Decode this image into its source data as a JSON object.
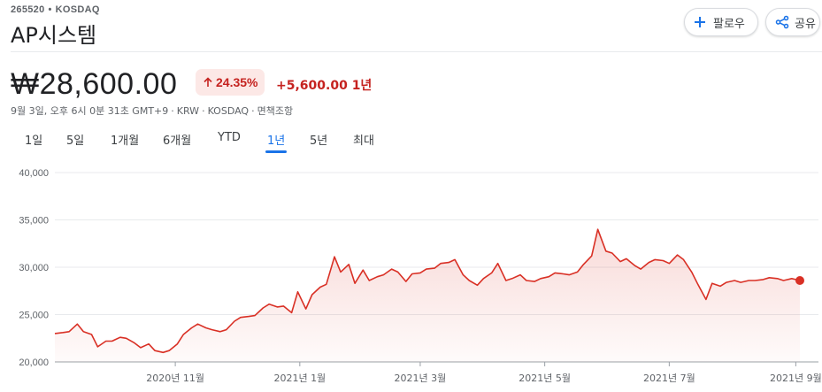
{
  "header": {
    "ticker": "265520",
    "exchange": "KOSDAQ",
    "separator": "•",
    "name": "AP시스템",
    "follow_label": "팔로우",
    "share_label": "공유"
  },
  "quote": {
    "price": "₩28,600.00",
    "change_percent": "24.35%",
    "change_amount": "+5,600.00 1년",
    "meta": [
      "9월 3일, 오후 6시 0분 31초 GMT+9",
      "KRW",
      "KOSDAQ",
      "면책조항"
    ],
    "meta_separator": "·",
    "trend_color": "#d93025",
    "up_color": "#c5221f"
  },
  "tabs": [
    {
      "label": "1일",
      "active": false
    },
    {
      "label": "5일",
      "active": false
    },
    {
      "label": "1개월",
      "active": false
    },
    {
      "label": "6개월",
      "active": false
    },
    {
      "label": "YTD",
      "active": false
    },
    {
      "label": "1년",
      "active": true
    },
    {
      "label": "5년",
      "active": false
    },
    {
      "label": "최대",
      "active": false
    }
  ],
  "icons": {
    "follow": "plus-icon",
    "share": "share-icon",
    "change": "arrow-up-icon"
  },
  "chart_data": {
    "type": "area",
    "title": "",
    "xlabel": "",
    "ylabel": "",
    "ylim": [
      20000,
      40000
    ],
    "yticks": [
      "40,000",
      "35,000",
      "30,000",
      "25,000",
      "20,000"
    ],
    "ytick_values": [
      40000,
      35000,
      30000,
      25000,
      20000
    ],
    "x_range": [
      "2020-09-03",
      "2021-09-03"
    ],
    "xticks": [
      {
        "label": "2020년 11월",
        "date": "2020-11-01"
      },
      {
        "label": "2021년 1월",
        "date": "2021-01-01"
      },
      {
        "label": "2021년 3월",
        "date": "2021-03-01"
      },
      {
        "label": "2021년 5월",
        "date": "2021-05-01"
      },
      {
        "label": "2021년 7월",
        "date": "2021-07-01"
      },
      {
        "label": "2021년 9월",
        "date": "2021-09-01"
      }
    ],
    "grid": true,
    "series": [
      {
        "line_color": "#d93025",
        "x": [
          "2020-09-03",
          "2020-09-07",
          "2020-09-10",
          "2020-09-14",
          "2020-09-17",
          "2020-09-21",
          "2020-09-24",
          "2020-09-28",
          "2020-10-01",
          "2020-10-05",
          "2020-10-08",
          "2020-10-12",
          "2020-10-15",
          "2020-10-19",
          "2020-10-22",
          "2020-10-26",
          "2020-10-29",
          "2020-11-02",
          "2020-11-05",
          "2020-11-09",
          "2020-11-12",
          "2020-11-16",
          "2020-11-19",
          "2020-11-23",
          "2020-11-26",
          "2020-11-30",
          "2020-12-03",
          "2020-12-07",
          "2020-12-10",
          "2020-12-14",
          "2020-12-17",
          "2020-12-21",
          "2020-12-24",
          "2020-12-28",
          "2020-12-31",
          "2021-01-04",
          "2021-01-07",
          "2021-01-11",
          "2021-01-14",
          "2021-01-18",
          "2021-01-21",
          "2021-01-25",
          "2021-01-28",
          "2021-02-01",
          "2021-02-04",
          "2021-02-08",
          "2021-02-11",
          "2021-02-15",
          "2021-02-18",
          "2021-02-22",
          "2021-02-25",
          "2021-03-01",
          "2021-03-04",
          "2021-03-08",
          "2021-03-11",
          "2021-03-15",
          "2021-03-18",
          "2021-03-22",
          "2021-03-25",
          "2021-03-29",
          "2021-04-01",
          "2021-04-05",
          "2021-04-08",
          "2021-04-12",
          "2021-04-15",
          "2021-04-19",
          "2021-04-22",
          "2021-04-26",
          "2021-04-29",
          "2021-05-03",
          "2021-05-06",
          "2021-05-10",
          "2021-05-13",
          "2021-05-17",
          "2021-05-20",
          "2021-05-24",
          "2021-05-27",
          "2021-05-31",
          "2021-06-03",
          "2021-06-07",
          "2021-06-10",
          "2021-06-14",
          "2021-06-17",
          "2021-06-21",
          "2021-06-24",
          "2021-06-28",
          "2021-07-01",
          "2021-07-05",
          "2021-07-08",
          "2021-07-12",
          "2021-07-15",
          "2021-07-19",
          "2021-07-22",
          "2021-07-26",
          "2021-07-29",
          "2021-08-02",
          "2021-08-05",
          "2021-08-09",
          "2021-08-12",
          "2021-08-16",
          "2021-08-19",
          "2021-08-23",
          "2021-08-26",
          "2021-08-30",
          "2021-09-03"
        ],
        "values": [
          23000,
          23100,
          23200,
          24000,
          23200,
          22900,
          21600,
          22200,
          22200,
          22600,
          22500,
          22000,
          21500,
          21900,
          21200,
          21000,
          21200,
          21900,
          22900,
          23600,
          24000,
          23600,
          23400,
          23200,
          23400,
          24300,
          24700,
          24800,
          24900,
          25700,
          26100,
          25800,
          25900,
          25200,
          27400,
          25600,
          27100,
          27900,
          28200,
          31100,
          29500,
          30300,
          28300,
          29700,
          28600,
          29000,
          29200,
          29800,
          29500,
          28500,
          29300,
          29400,
          29800,
          29900,
          30400,
          30500,
          30800,
          29200,
          28600,
          28100,
          28800,
          29400,
          30400,
          28600,
          28800,
          29200,
          28600,
          28500,
          28800,
          29000,
          29400,
          29300,
          29200,
          29500,
          30300,
          31200,
          34000,
          31700,
          31500,
          30600,
          30900,
          30200,
          29800,
          30500,
          30800,
          30700,
          30400,
          31300,
          30800,
          29500,
          28200,
          26600,
          28300,
          28000,
          28400,
          28600,
          28400,
          28600,
          28600,
          28700,
          28900,
          28800,
          28600,
          28800,
          28600
        ]
      }
    ],
    "last_value": 28600
  }
}
